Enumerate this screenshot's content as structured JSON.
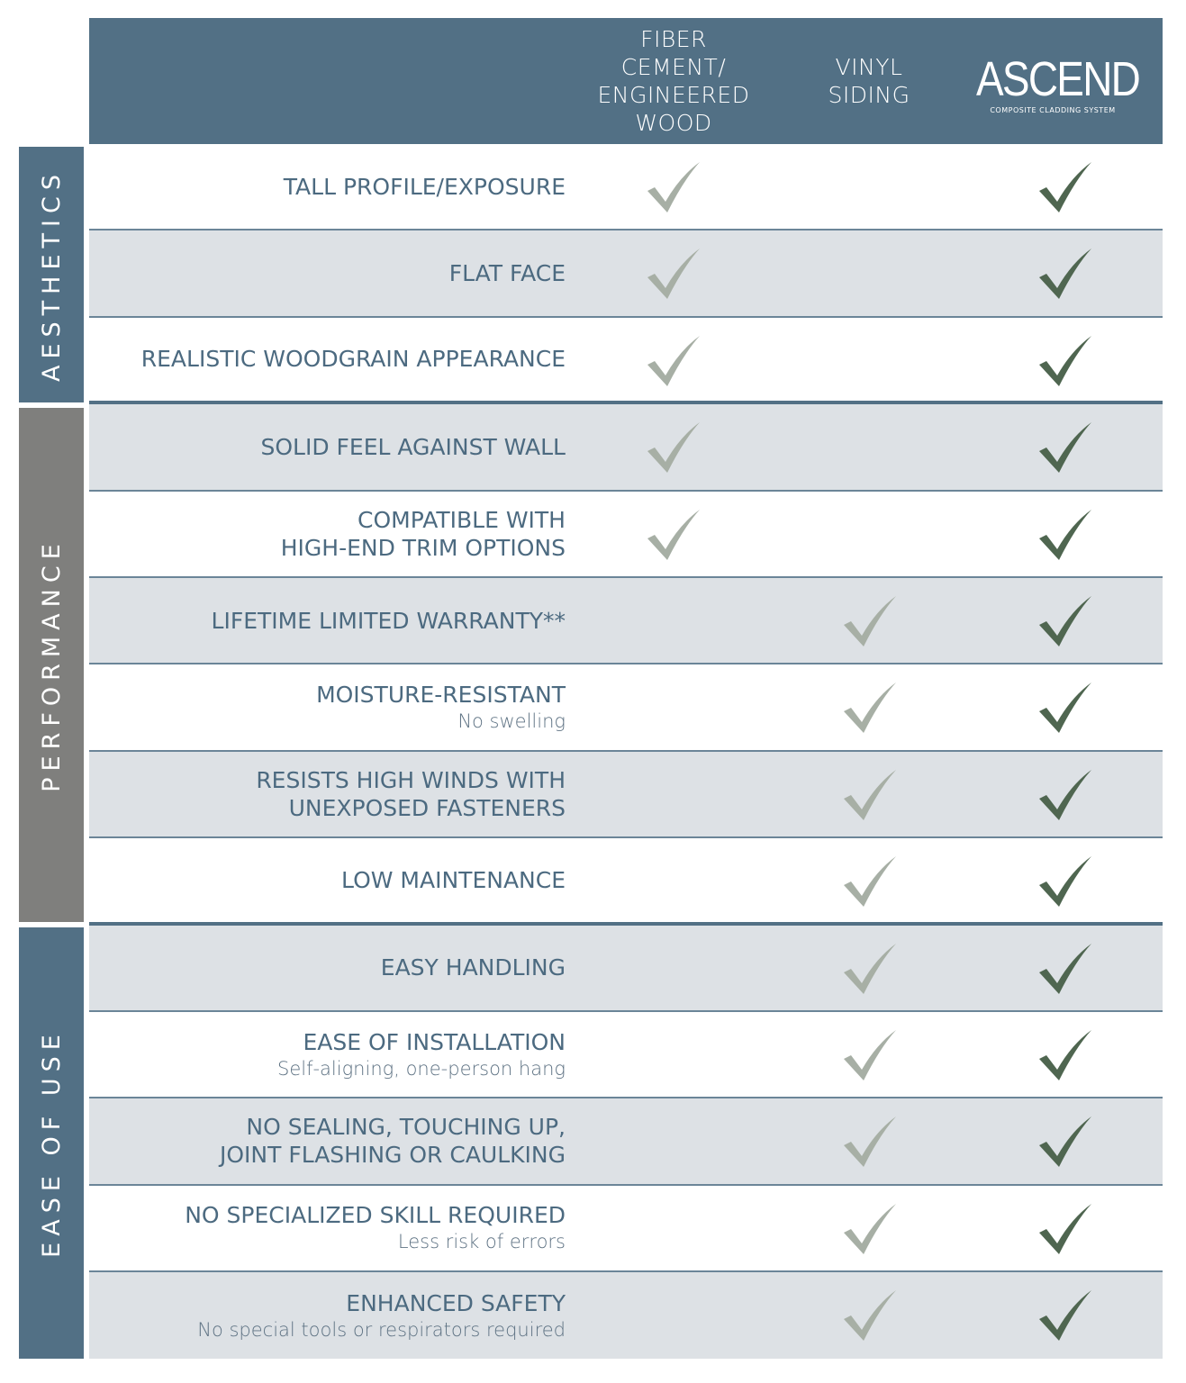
{
  "colors": {
    "header": "#527085",
    "aesthetics": "#527085",
    "performance": "#7f7f7d",
    "ease_of_use": "#527085",
    "alt_row": "#dde1e5",
    "text": "#4c6a80",
    "check_competitor": "#a7afa5",
    "check_ascend": "#4f6650"
  },
  "columns": [
    {
      "label": "FIBER\nCEMENT/\nENGINEERED\nWOOD"
    },
    {
      "label": "VINYL\nSIDING"
    },
    {
      "label": "ASCEND",
      "tagline": "COMPOSITE CLADDING SYSTEM",
      "logo": true
    }
  ],
  "sections": [
    {
      "label": "AESTHETICS"
    },
    {
      "label": "PERFORMANCE"
    },
    {
      "label": "EASE OF USE"
    }
  ],
  "rows": [
    {
      "label": "TALL PROFILE/EXPOSURE",
      "sub": "",
      "checks": [
        true,
        false,
        true
      ]
    },
    {
      "label": "FLAT FACE",
      "sub": "",
      "checks": [
        true,
        false,
        true
      ]
    },
    {
      "label": "REALISTIC WOODGRAIN APPEARANCE",
      "sub": "",
      "checks": [
        true,
        false,
        true
      ]
    },
    {
      "label": "SOLID FEEL AGAINST WALL",
      "sub": "",
      "checks": [
        true,
        false,
        true
      ]
    },
    {
      "label": "COMPATIBLE WITH\nHIGH-END TRIM OPTIONS",
      "sub": "",
      "checks": [
        true,
        false,
        true
      ]
    },
    {
      "label": "LIFETIME LIMITED WARRANTY**",
      "sub": "",
      "checks": [
        false,
        true,
        true
      ]
    },
    {
      "label": "MOISTURE-RESISTANT",
      "sub": "No swelling",
      "checks": [
        false,
        true,
        true
      ]
    },
    {
      "label": "RESISTS HIGH WINDS WITH\nUNEXPOSED FASTENERS",
      "sub": "",
      "checks": [
        false,
        true,
        true
      ]
    },
    {
      "label": "LOW MAINTENANCE",
      "sub": "",
      "checks": [
        false,
        true,
        true
      ]
    },
    {
      "label": "EASY HANDLING",
      "sub": "",
      "checks": [
        false,
        true,
        true
      ]
    },
    {
      "label": "EASE OF INSTALLATION",
      "sub": "Self-aligning, one-person hang",
      "checks": [
        false,
        true,
        true
      ]
    },
    {
      "label": "NO SEALING, TOUCHING UP,\nJOINT FLASHING OR CAULKING",
      "sub": "",
      "checks": [
        false,
        true,
        true
      ]
    },
    {
      "label": "NO SPECIALIZED SKILL REQUIRED",
      "sub": "Less risk of errors",
      "checks": [
        false,
        true,
        true
      ]
    },
    {
      "label": "ENHANCED SAFETY",
      "sub": "No special tools or respirators required",
      "checks": [
        false,
        true,
        true
      ]
    }
  ]
}
